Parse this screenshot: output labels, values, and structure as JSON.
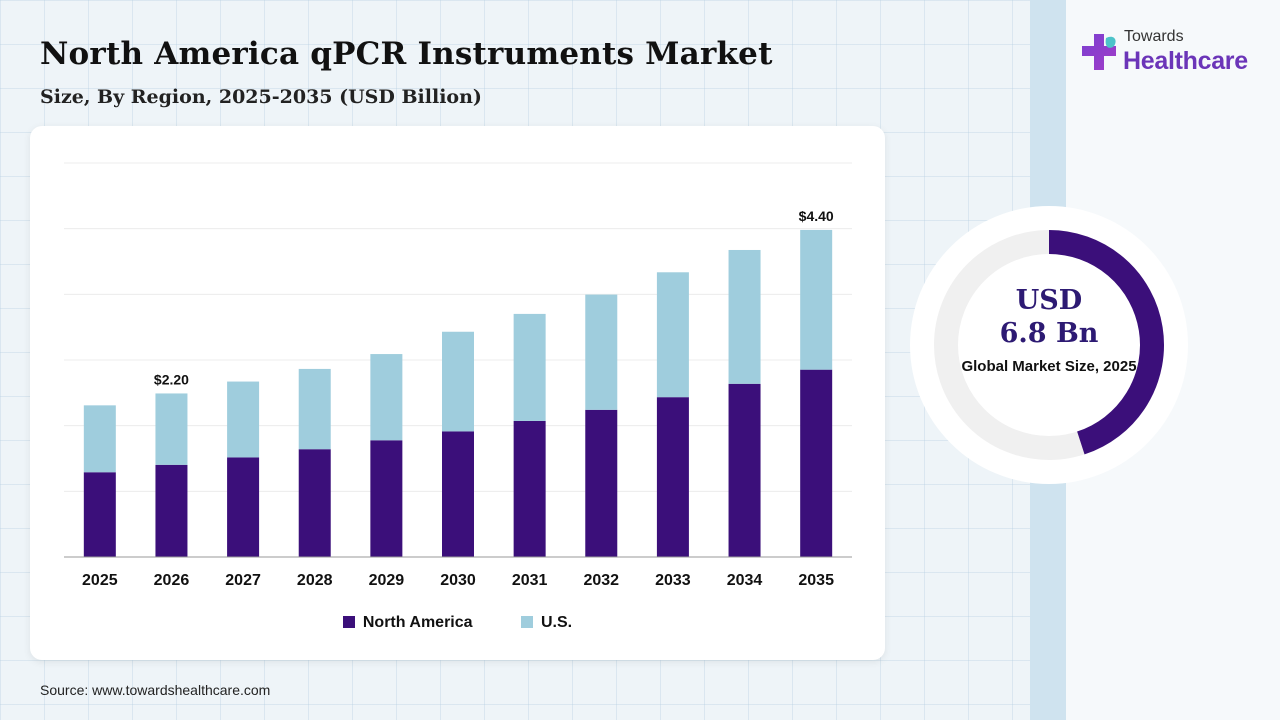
{
  "header": {
    "title": "North America qPCR Instruments Market",
    "subtitle": "Size, By Region, 2025-2035 (USD Billion)"
  },
  "logo": {
    "small_text": "Towards",
    "big_text": "Healthcare",
    "icon": "medical-cross-icon"
  },
  "colors": {
    "north_america": "#3b0f7a",
    "us": "#9fcddd",
    "accent": "#6b35b8",
    "donut_fill": "#3b0f7a",
    "donut_track": "#f0f0f0"
  },
  "chart_data": {
    "type": "bar",
    "stacked": true,
    "categories": [
      "2025",
      "2026",
      "2027",
      "2028",
      "2029",
      "2030",
      "2031",
      "2032",
      "2033",
      "2034",
      "2035"
    ],
    "series": [
      {
        "name": "North America",
        "values": [
          1.14,
          1.24,
          1.34,
          1.45,
          1.57,
          1.69,
          1.83,
          1.98,
          2.15,
          2.33,
          2.52
        ]
      },
      {
        "name": "U.S.",
        "values": [
          0.9,
          0.96,
          1.02,
          1.08,
          1.16,
          1.34,
          1.44,
          1.55,
          1.68,
          1.8,
          1.88
        ]
      }
    ],
    "data_labels": [
      {
        "category": "2026",
        "text": "$2.20"
      },
      {
        "category": "2035",
        "text": "$4.40"
      }
    ],
    "ylim": [
      0,
      5.3
    ],
    "grid": true,
    "legend": "bottom-center"
  },
  "donut": {
    "value": "USD\n6.8 Bn",
    "label": "Global Market Size, 2025",
    "fraction": 0.45
  },
  "source": "Source: www.towardshealthcare.com"
}
